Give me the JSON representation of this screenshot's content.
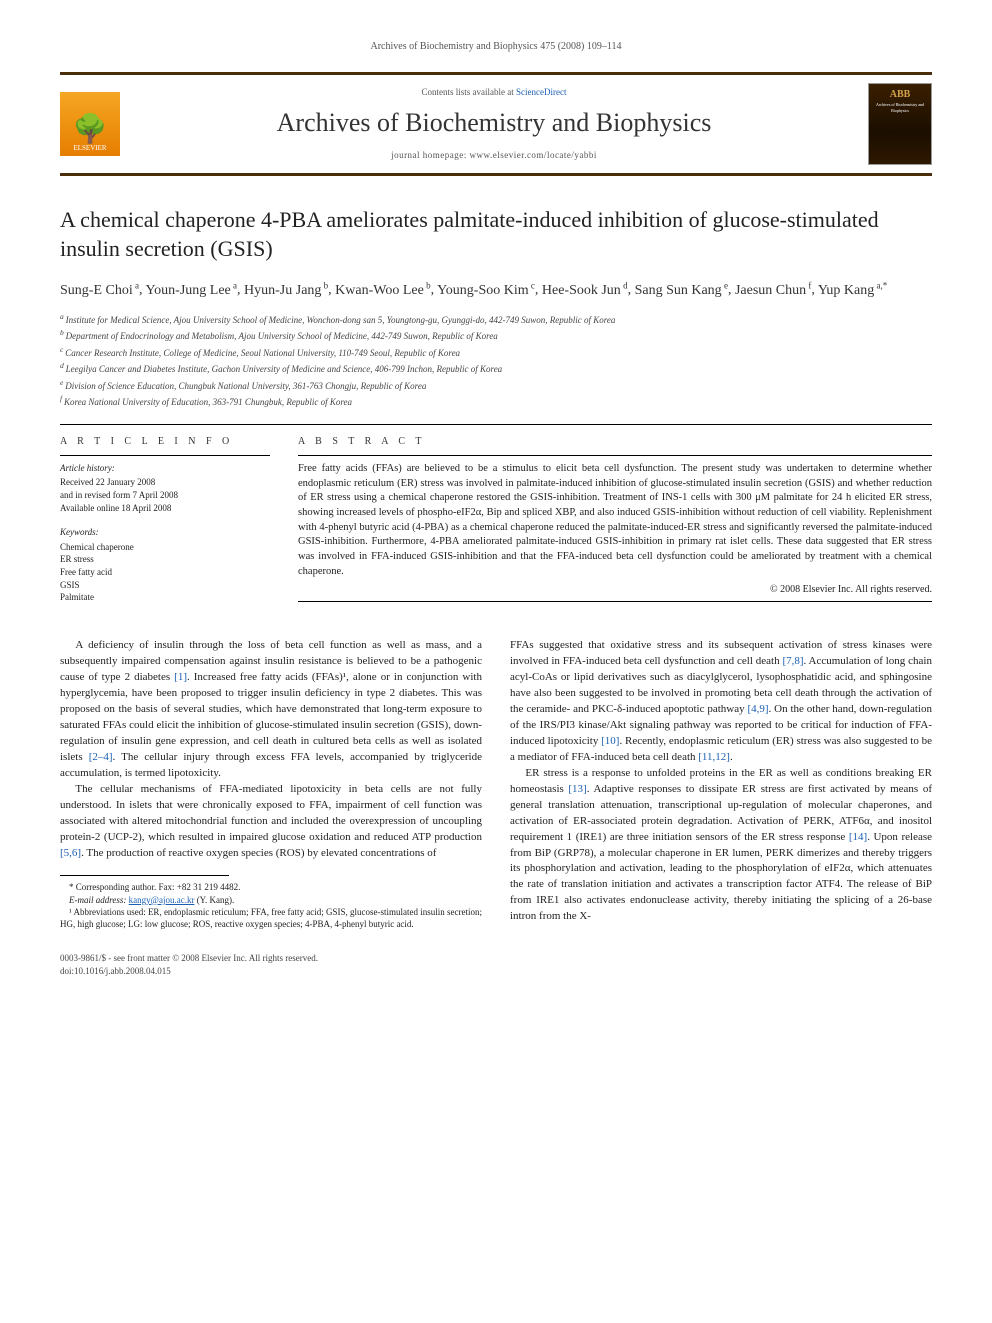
{
  "runningHead": "Archives of Biochemistry and Biophysics 475 (2008) 109–114",
  "header": {
    "contentsPrefix": "Contents lists available at ",
    "contentsLink": "ScienceDirect",
    "journalTitle": "Archives of Biochemistry and Biophysics",
    "homepageLabel": "journal homepage: www.elsevier.com/locate/yabbi",
    "publisherName": "ELSEVIER",
    "coverAbbrev": "ABB",
    "coverSubtitle": "Archives of Biochemistry and Biophysics"
  },
  "article": {
    "title": "A chemical chaperone 4-PBA ameliorates palmitate-induced inhibition of glucose-stimulated insulin secretion (GSIS)",
    "authorsHtmlParts": [
      {
        "name": "Sung-E Choi",
        "aff": "a"
      },
      {
        "name": "Youn-Jung Lee",
        "aff": "a"
      },
      {
        "name": "Hyun-Ju Jang",
        "aff": "b"
      },
      {
        "name": "Kwan-Woo Lee",
        "aff": "b"
      },
      {
        "name": "Young-Soo Kim",
        "aff": "c"
      },
      {
        "name": "Hee-Sook Jun",
        "aff": "d"
      },
      {
        "name": "Sang Sun Kang",
        "aff": "e"
      },
      {
        "name": "Jaesun Chun",
        "aff": "f"
      },
      {
        "name": "Yup Kang",
        "aff": "a,*"
      }
    ],
    "affiliations": [
      {
        "key": "a",
        "text": "Institute for Medical Science, Ajou University School of Medicine, Wonchon-dong san 5, Youngtong-gu, Gyunggi-do, 442-749 Suwon, Republic of Korea"
      },
      {
        "key": "b",
        "text": "Department of Endocrinology and Metabolism, Ajou University School of Medicine, 442-749 Suwon, Republic of Korea"
      },
      {
        "key": "c",
        "text": "Cancer Research Institute, College of Medicine, Seoul National University, 110-749 Seoul, Republic of Korea"
      },
      {
        "key": "d",
        "text": "Leegilya Cancer and Diabetes Institute, Gachon University of Medicine and Science, 406-799 Inchon, Republic of Korea"
      },
      {
        "key": "e",
        "text": "Division of Science Education, Chungbuk National University, 361-763 Chongju, Republic of Korea"
      },
      {
        "key": "f",
        "text": "Korea National University of Education, 363-791 Chungbuk, Republic of Korea"
      }
    ]
  },
  "info": {
    "heading": "A R T I C L E   I N F O",
    "historyLabel": "Article history:",
    "received": "Received 22 January 2008",
    "revised": "and in revised form 7 April 2008",
    "online": "Available online 18 April 2008",
    "keywordsLabel": "Keywords:",
    "keywords": [
      "Chemical chaperone",
      "ER stress",
      "Free fatty acid",
      "GSIS",
      "Palmitate"
    ]
  },
  "abstract": {
    "heading": "A B S T R A C T",
    "text": "Free fatty acids (FFAs) are believed to be a stimulus to elicit beta cell dysfunction. The present study was undertaken to determine whether endoplasmic reticulum (ER) stress was involved in palmitate-induced inhibition of glucose-stimulated insulin secretion (GSIS) and whether reduction of ER stress using a chemical chaperone restored the GSIS-inhibition. Treatment of INS-1 cells with 300 μM palmitate for 24 h elicited ER stress, showing increased levels of phospho-eIF2α, Bip and spliced XBP, and also induced GSIS-inhibition without reduction of cell viability. Replenishment with 4-phenyl butyric acid (4-PBA) as a chemical chaperone reduced the palmitate-induced-ER stress and significantly reversed the palmitate-induced GSIS-inhibition. Furthermore, 4-PBA ameliorated palmitate-induced GSIS-inhibition in primary rat islet cells. These data suggested that ER stress was involved in FFA-induced GSIS-inhibition and that the FFA-induced beta cell dysfunction could be ameliorated by treatment with a chemical chaperone.",
    "copyright": "© 2008 Elsevier Inc. All rights reserved."
  },
  "body": {
    "p1": "A deficiency of insulin through the loss of beta cell function as well as mass, and a subsequently impaired compensation against insulin resistance is believed to be a pathogenic cause of type 2 diabetes [1]. Increased free fatty acids (FFAs)¹, alone or in conjunction with hyperglycemia, have been proposed to trigger insulin deficiency in type 2 diabetes. This was proposed on the basis of several studies, which have demonstrated that long-term exposure to saturated FFAs could elicit the inhibition of glucose-stimulated insulin secretion (GSIS), down-regulation of insulin gene expression, and cell death in cultured beta cells as well as isolated islets [2–4]. The cellular injury through excess FFA levels, accompanied by triglyceride accumulation, is termed lipotoxicity.",
    "p2": "The cellular mechanisms of FFA-mediated lipotoxicity in beta cells are not fully understood. In islets that were chronically exposed to FFA, impairment of cell function was associated with altered mitochondrial function and included the overexpression of uncoupling protein-2 (UCP-2), which resulted in impaired glucose oxidation and reduced ATP production [5,6]. The production of reactive oxygen species (ROS) by elevated concentrations of",
    "p3": "FFAs suggested that oxidative stress and its subsequent activation of stress kinases were involved in FFA-induced beta cell dysfunction and cell death [7,8]. Accumulation of long chain acyl-CoAs or lipid derivatives such as diacylglycerol, lysophosphatidic acid, and sphingosine have also been suggested to be involved in promoting beta cell death through the activation of the ceramide- and PKC-δ-induced apoptotic pathway [4,9]. On the other hand, down-regulation of the IRS/PI3 kinase/Akt signaling pathway was reported to be critical for induction of FFA-induced lipotoxicity [10]. Recently, endoplasmic reticulum (ER) stress was also suggested to be a mediator of FFA-induced beta cell death [11,12].",
    "p4": "ER stress is a response to unfolded proteins in the ER as well as conditions breaking ER homeostasis [13]. Adaptive responses to dissipate ER stress are first activated by means of general translation attenuation, transcriptional up-regulation of molecular chaperones, and activation of ER-associated protein degradation. Activation of PERK, ATF6α, and inositol requirement 1 (IRE1) are three initiation sensors of the ER stress response [14]. Upon release from BiP (GRP78), a molecular chaperone in ER lumen, PERK dimerizes and thereby triggers its phosphorylation and activation, leading to the phosphorylation of eIF2α, which attenuates the rate of translation initiation and activates a transcription factor ATF4. The release of BiP from IRE1 also activates endonuclease activity, thereby initiating the splicing of a 26-base intron from the X-"
  },
  "footnotes": {
    "corr": "* Corresponding author. Fax: +82 31 219 4482.",
    "emailLabel": "E-mail address: ",
    "email": "kangy@ajou.ac.kr",
    "emailSuffix": " (Y. Kang).",
    "abbrev": "¹ Abbreviations used: ER, endoplasmic reticulum; FFA, free fatty acid; GSIS, glucose-stimulated insulin secretion; HG, high glucose; LG: low glucose; ROS, reactive oxygen species; 4-PBA, 4-phenyl butyric acid."
  },
  "footer": {
    "left1": "0003-9861/$ - see front matter © 2008 Elsevier Inc. All rights reserved.",
    "left2": "doi:10.1016/j.abb.2008.04.015"
  },
  "colors": {
    "ruleBrown": "#4a2e0a",
    "elsevierOrange": "#e67e00",
    "linkBlue": "#1a5fb4",
    "textGray": "#555555"
  }
}
